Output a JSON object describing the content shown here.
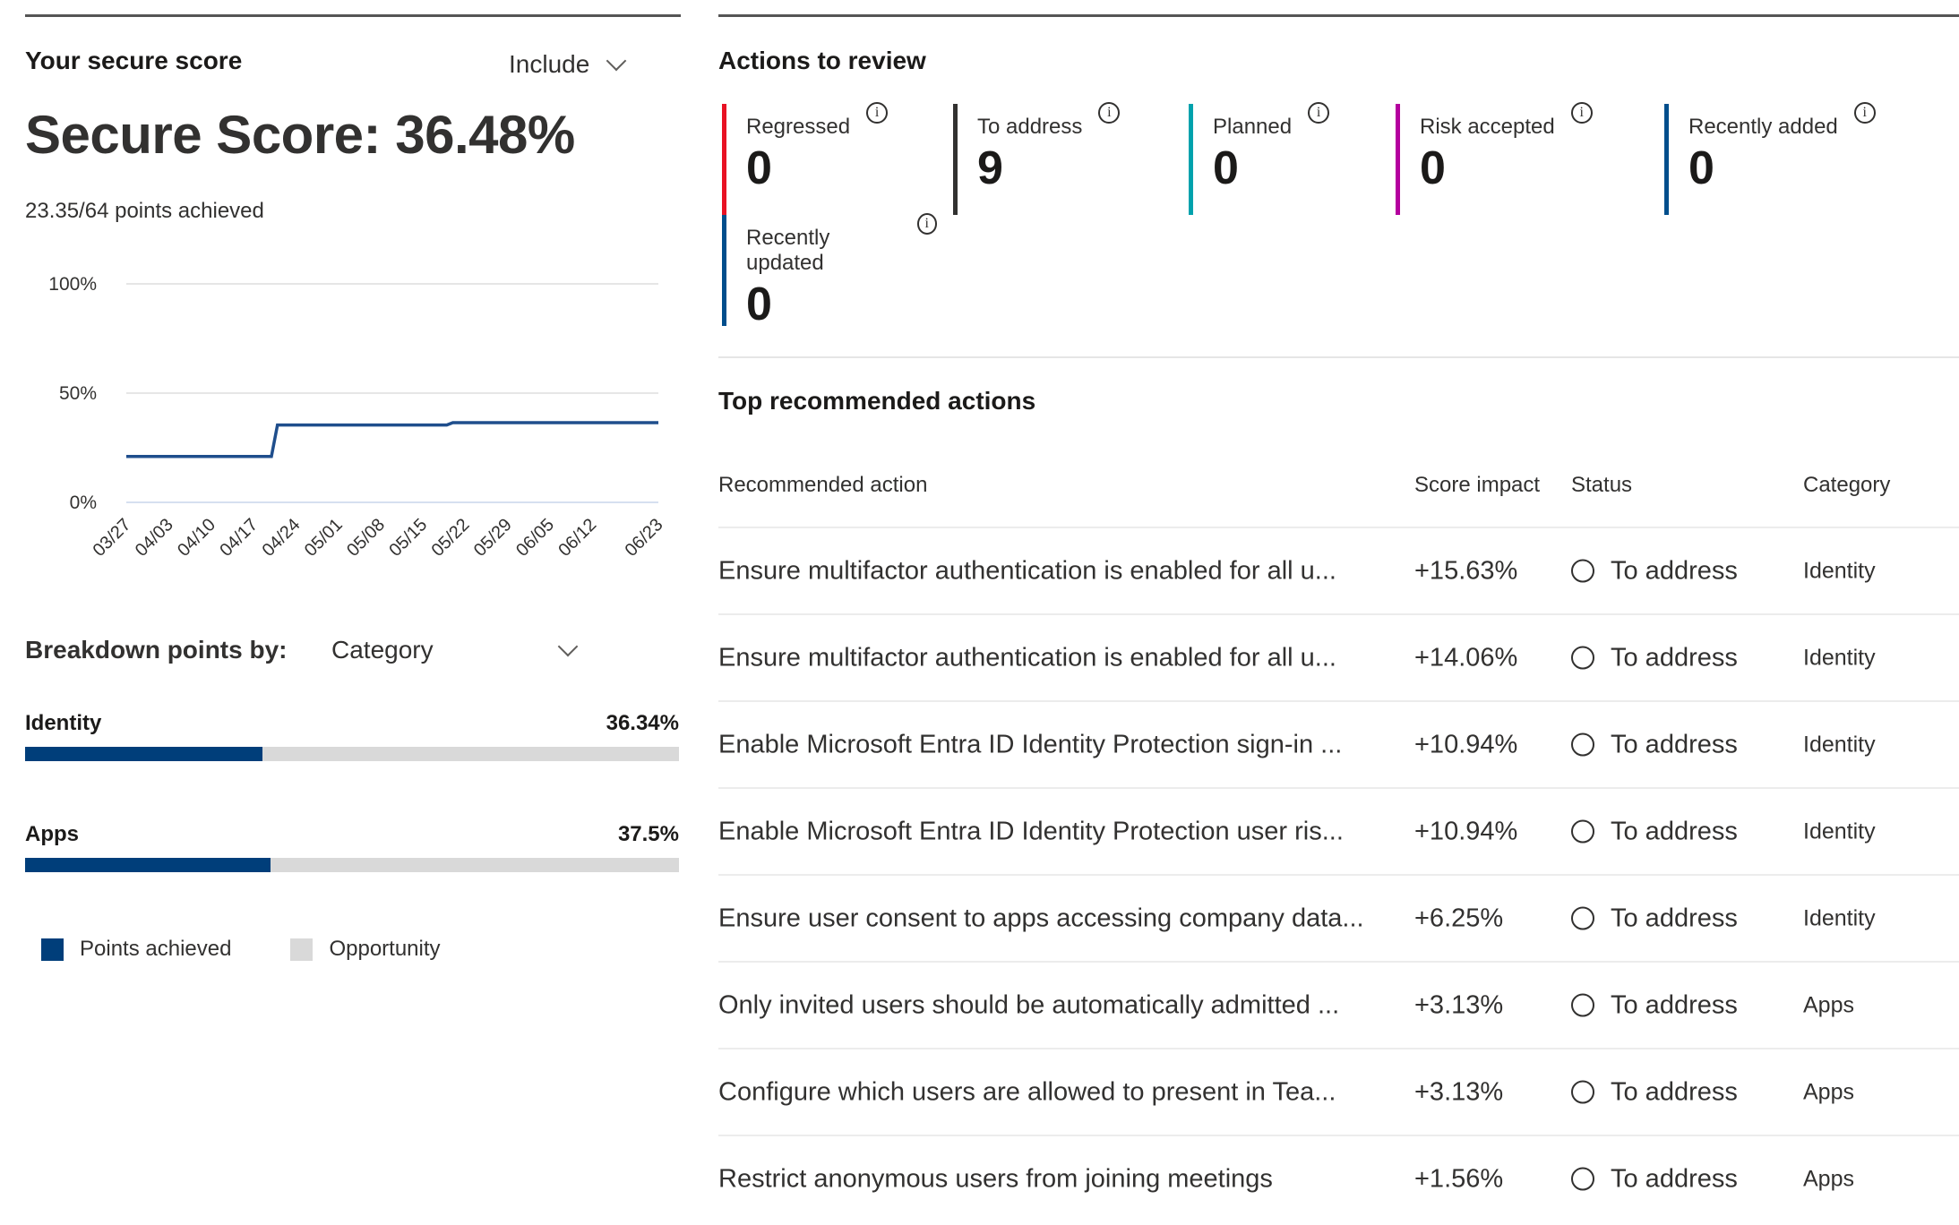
{
  "secure_score": {
    "title": "Your secure score",
    "include_label": "Include",
    "score_text": "Secure Score: 36.48%",
    "points_text": "23.35/64 points achieved"
  },
  "chart_data": {
    "type": "line",
    "title": "",
    "xlabel": "",
    "ylabel": "",
    "ylim": [
      0,
      100
    ],
    "y_ticks": [
      "0%",
      "50%",
      "100%"
    ],
    "x_ticks": [
      "03/27",
      "04/03",
      "04/10",
      "04/17",
      "04/24",
      "05/01",
      "05/08",
      "05/15",
      "05/22",
      "05/29",
      "06/05",
      "06/12",
      "06/23"
    ],
    "xlim": [
      "03/27",
      "06/23"
    ],
    "grid": true,
    "series": [
      {
        "color": "#1f4e8c",
        "x": [
          "03/27",
          "04/20",
          "04/21",
          "05/19",
          "05/20",
          "06/23"
        ],
        "y": [
          21,
          21,
          35.4,
          35.4,
          36.5,
          36.5
        ]
      }
    ]
  },
  "breakdown": {
    "label": "Breakdown points by:",
    "selected": "Category",
    "categories": [
      {
        "name": "Identity",
        "percent_text": "36.34%",
        "percent": 36.34
      },
      {
        "name": "Apps",
        "percent_text": "37.5%",
        "percent": 37.5
      }
    ],
    "legend": [
      {
        "label": "Points achieved",
        "color": "#003e7a"
      },
      {
        "label": "Opportunity",
        "color": "#d9d9d9"
      }
    ]
  },
  "actions_to_review": {
    "title": "Actions to review",
    "cards": [
      {
        "label": "Regressed",
        "value": "0",
        "color": "#e81123"
      },
      {
        "label": "To address",
        "value": "9",
        "color": "#323130"
      },
      {
        "label": "Planned",
        "value": "0",
        "color": "#00a2ad"
      },
      {
        "label": "Risk accepted",
        "value": "0",
        "color": "#b4009e"
      },
      {
        "label": "Recently added",
        "value": "0",
        "color": "#004e8c"
      },
      {
        "label": "Recently updated",
        "value": "0",
        "color": "#004e8c"
      }
    ]
  },
  "top_actions": {
    "title": "Top recommended actions",
    "columns": [
      "Recommended action",
      "Score impact",
      "Status",
      "Category"
    ],
    "rows": [
      {
        "action": "Ensure multifactor authentication is enabled for all u...",
        "impact": "+15.63%",
        "status": "To address",
        "category": "Identity"
      },
      {
        "action": "Ensure multifactor authentication is enabled for all u...",
        "impact": "+14.06%",
        "status": "To address",
        "category": "Identity"
      },
      {
        "action": "Enable Microsoft Entra ID Identity Protection sign-in ...",
        "impact": "+10.94%",
        "status": "To address",
        "category": "Identity"
      },
      {
        "action": "Enable Microsoft Entra ID Identity Protection user ris...",
        "impact": "+10.94%",
        "status": "To address",
        "category": "Identity"
      },
      {
        "action": "Ensure user consent to apps accessing company data...",
        "impact": "+6.25%",
        "status": "To address",
        "category": "Identity"
      },
      {
        "action": "Only invited users should be automatically admitted ...",
        "impact": "+3.13%",
        "status": "To address",
        "category": "Apps"
      },
      {
        "action": "Configure which users are allowed to present in Tea...",
        "impact": "+3.13%",
        "status": "To address",
        "category": "Apps"
      },
      {
        "action": "Restrict anonymous users from joining meetings",
        "impact": "+1.56%",
        "status": "To address",
        "category": "Apps"
      }
    ]
  }
}
